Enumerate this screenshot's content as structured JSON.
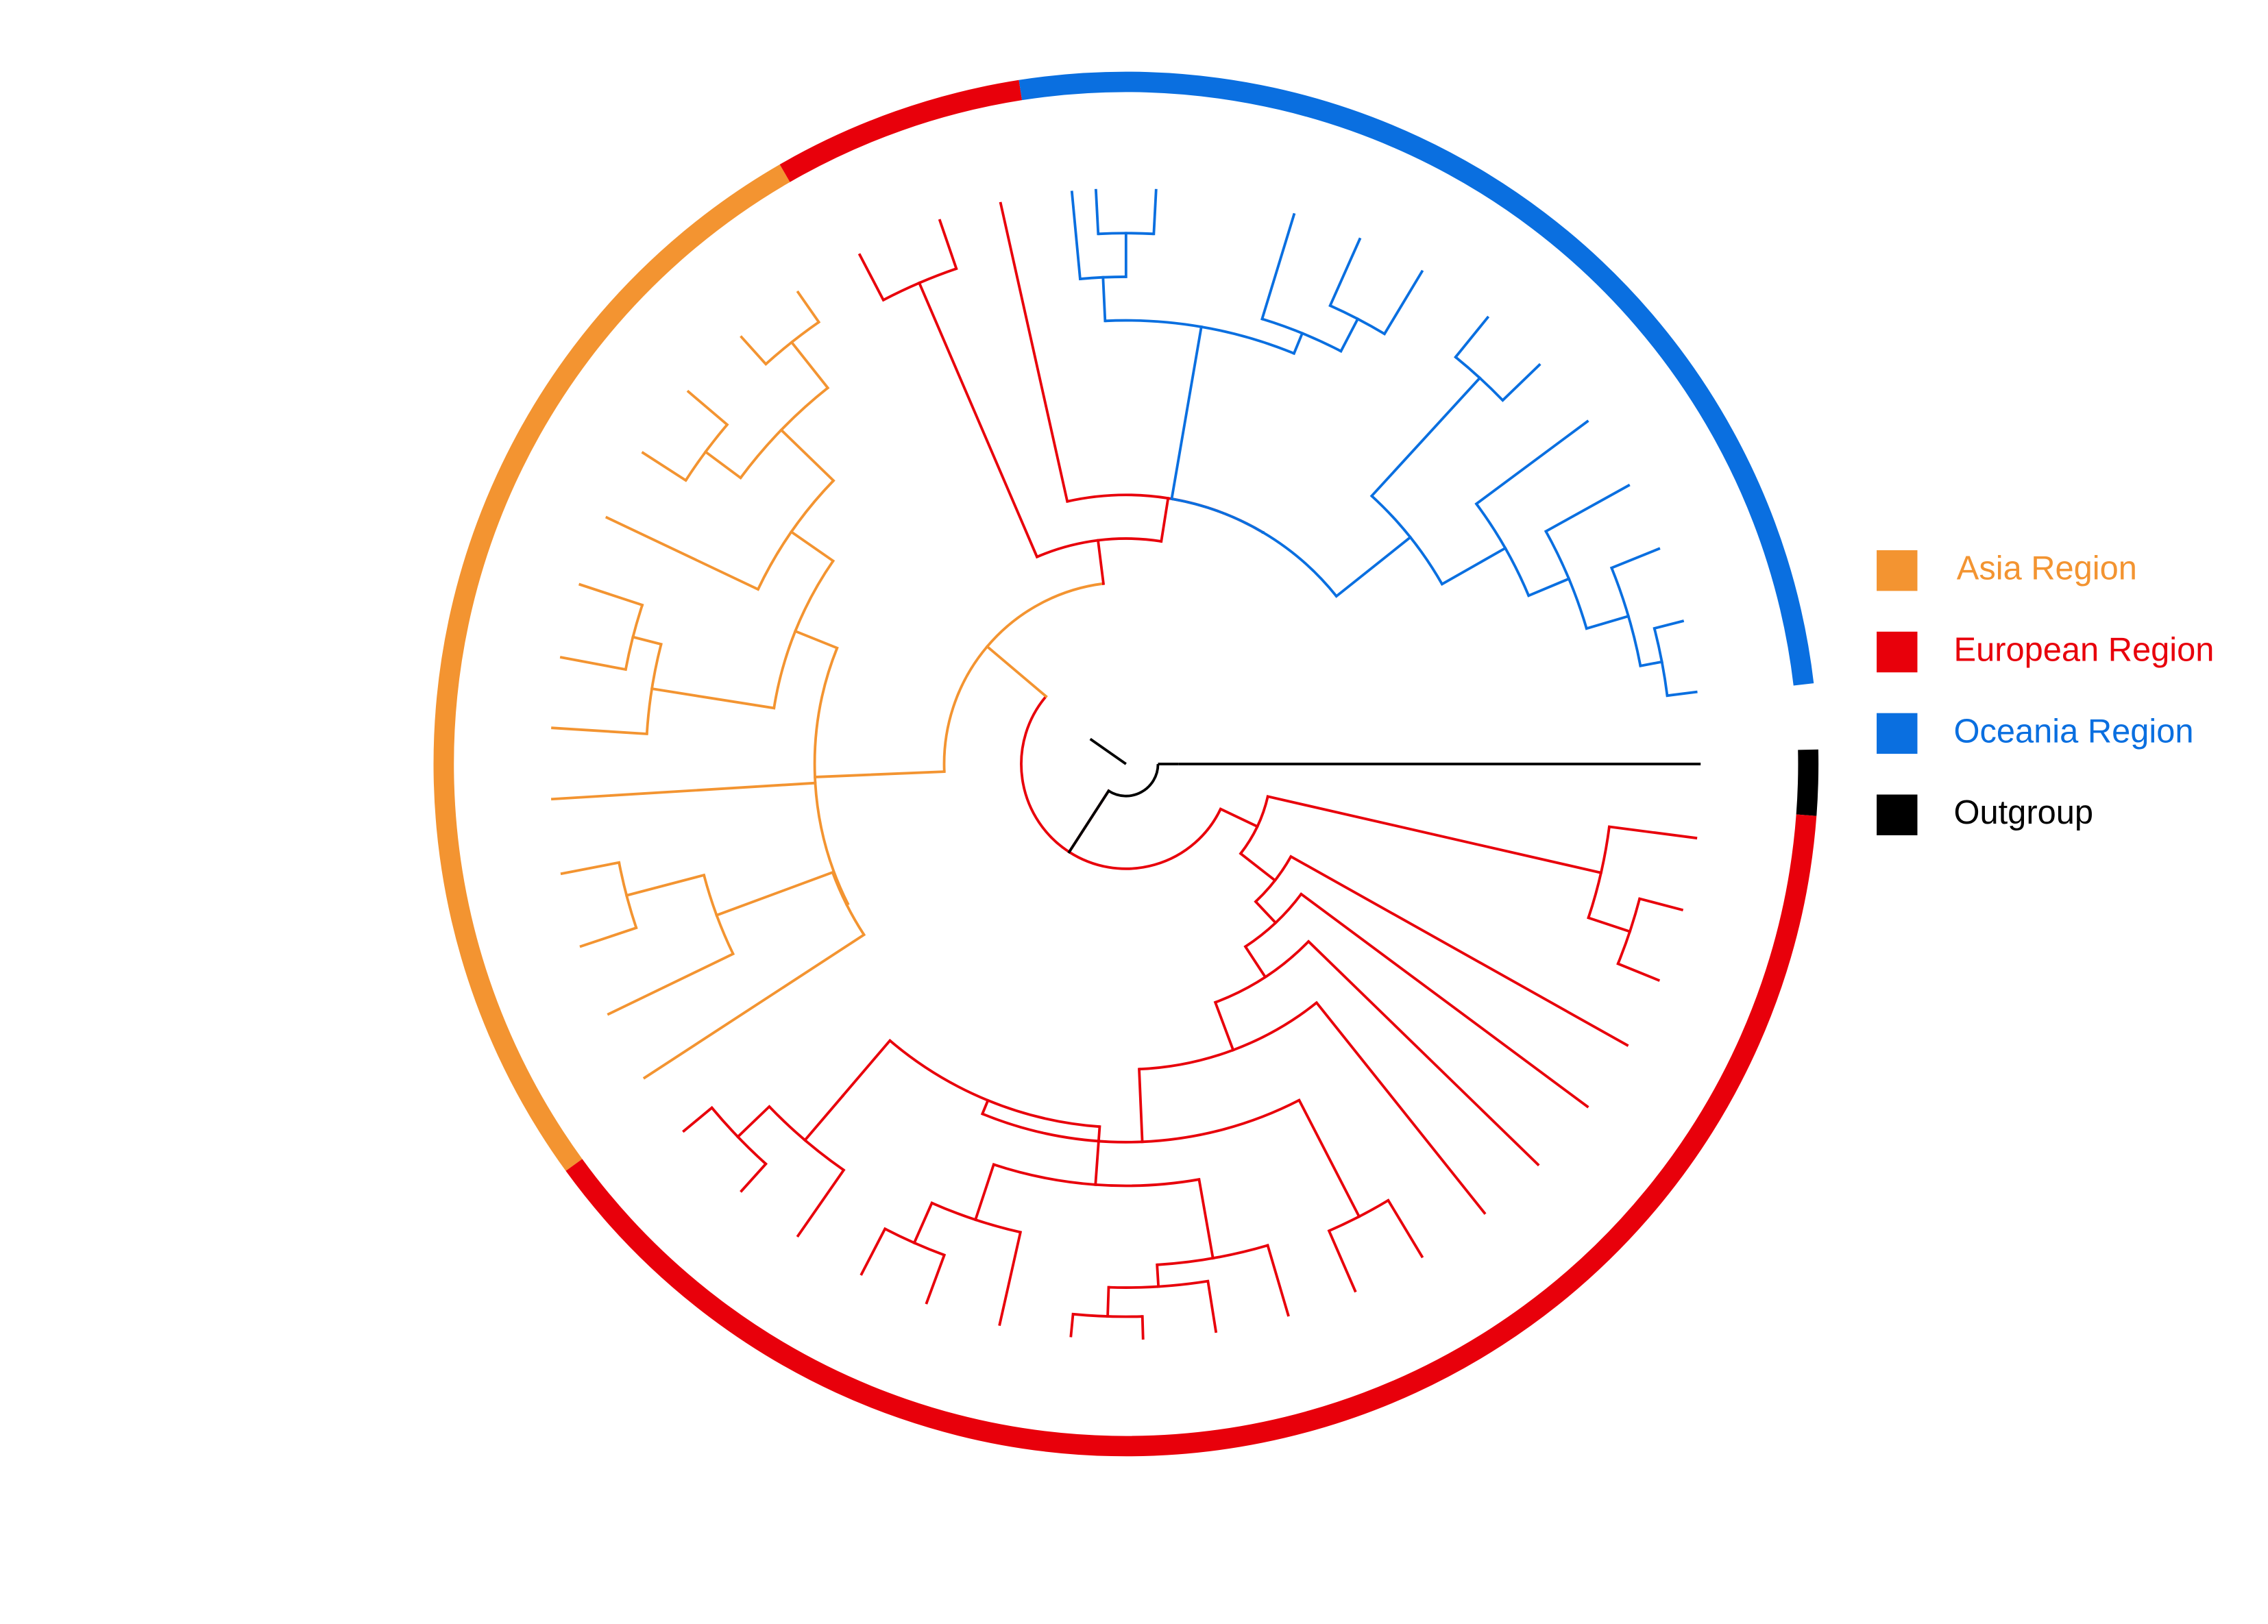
{
  "legend": {
    "items": [
      {
        "label": "Asia Region",
        "color": "#F39431"
      },
      {
        "label": "European Region",
        "color": "#E8000B"
      },
      {
        "label": "Oceania Region",
        "color": "#0A6FE0"
      },
      {
        "label": "Outgroup",
        "color": "#000000"
      }
    ]
  }
}
